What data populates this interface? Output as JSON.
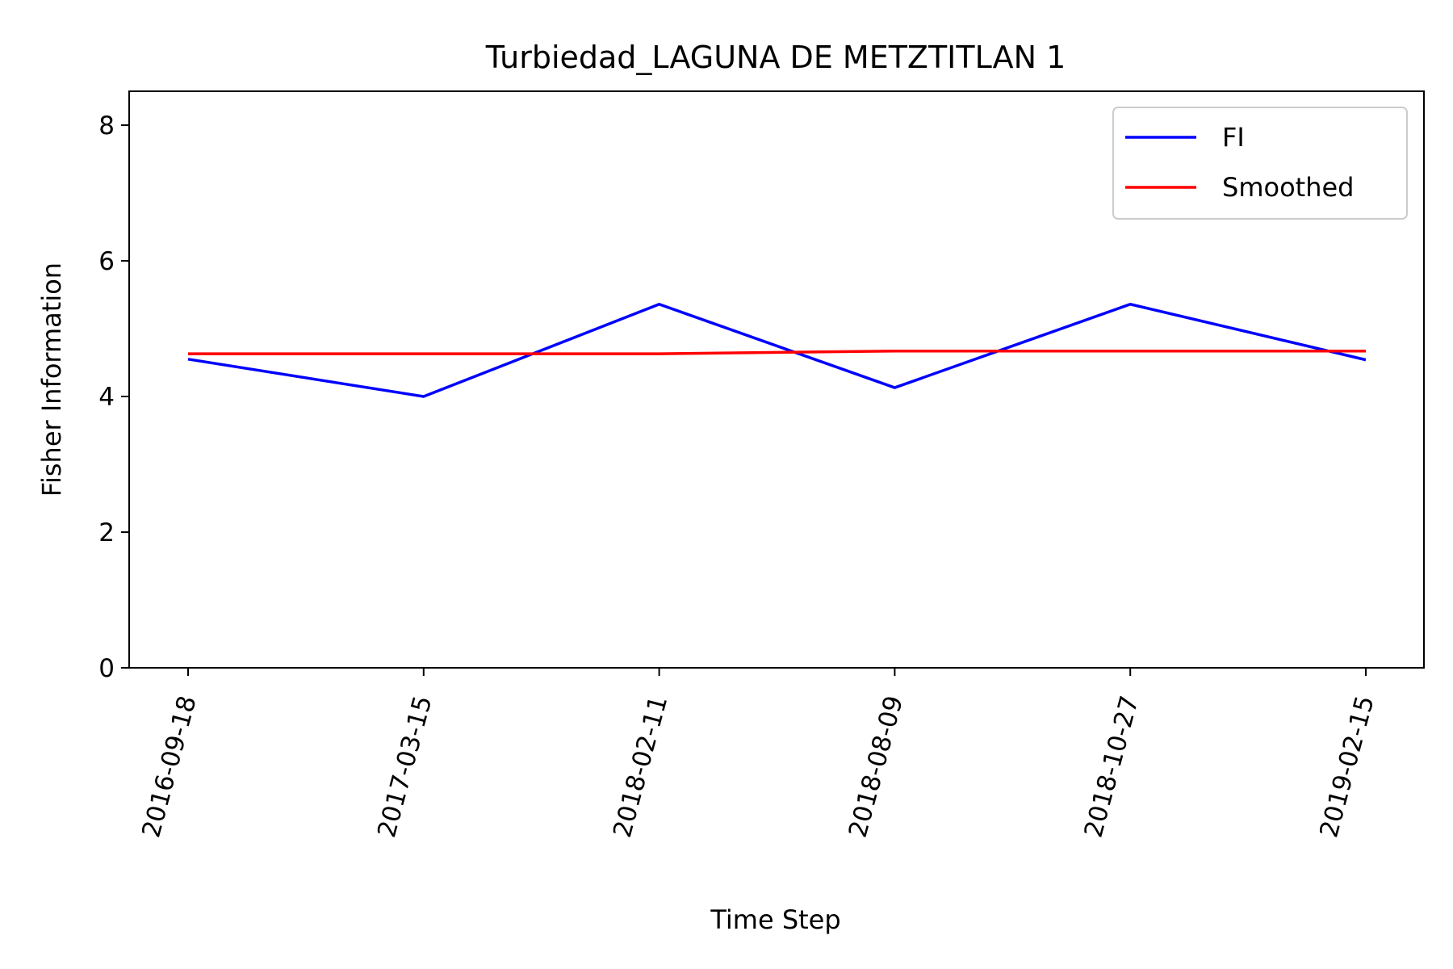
{
  "chart_data": {
    "type": "line",
    "title": "Turbiedad_LAGUNA DE METZTITLAN 1",
    "xlabel": "Time Step",
    "ylabel": "Fisher Information",
    "categories": [
      "2016-09-18",
      "2017-03-15",
      "2018-02-11",
      "2018-08-09",
      "2018-10-27",
      "2019-02-15"
    ],
    "ylim": [
      0,
      8.5
    ],
    "yticks": [
      "0",
      "2",
      "4",
      "6",
      "8"
    ],
    "legend_position": "top-right",
    "grid": false,
    "series": [
      {
        "name": "FI",
        "color": "#0000ff",
        "values": [
          4.55,
          4.0,
          5.36,
          4.13,
          5.36,
          4.54
        ]
      },
      {
        "name": "Smoothed",
        "color": "#ff0000",
        "values": [
          4.63,
          4.63,
          4.63,
          4.67,
          4.67,
          4.67
        ]
      }
    ]
  }
}
